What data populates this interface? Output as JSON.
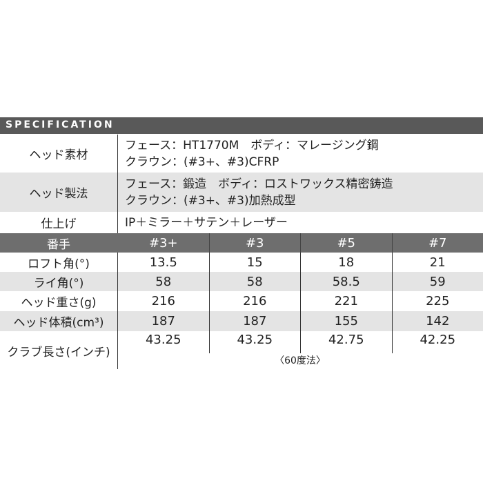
{
  "title": "SPECIFICATION",
  "spec_rows": [
    {
      "label": "ヘッド素材",
      "lines": [
        "フェース：HT1770M　ボディ：マレージング鋼",
        "クラウン：(#3+、#3)CFRP"
      ]
    },
    {
      "label": "ヘッド製法",
      "lines": [
        "フェース：鍛造　ボディ：ロストワックス精密鋳造",
        "クラウン：(#3+、#3)加熱成型"
      ]
    },
    {
      "label": "仕上げ",
      "lines": [
        "IP＋ミラー＋サテン＋レーザー"
      ]
    }
  ],
  "table": {
    "header": {
      "label": "番手",
      "columns": [
        "#3+",
        "#3",
        "#5",
        "#7"
      ]
    },
    "rows": [
      {
        "label": "ロフト角(°)",
        "values": [
          "13.5",
          "15",
          "18",
          "21"
        ]
      },
      {
        "label": "ライ角(°)",
        "values": [
          "58",
          "58",
          "58.5",
          "59"
        ]
      },
      {
        "label": "ヘッド重さ(g)",
        "values": [
          "216",
          "216",
          "221",
          "225"
        ]
      },
      {
        "label": "ヘッド体積(cm³)",
        "values": [
          "187",
          "187",
          "155",
          "142"
        ]
      },
      {
        "label": "クラブ長さ(インチ)",
        "values": [
          "43.25",
          "43.25",
          "42.75",
          "42.25"
        ]
      }
    ],
    "note": "〈60度法〉"
  }
}
